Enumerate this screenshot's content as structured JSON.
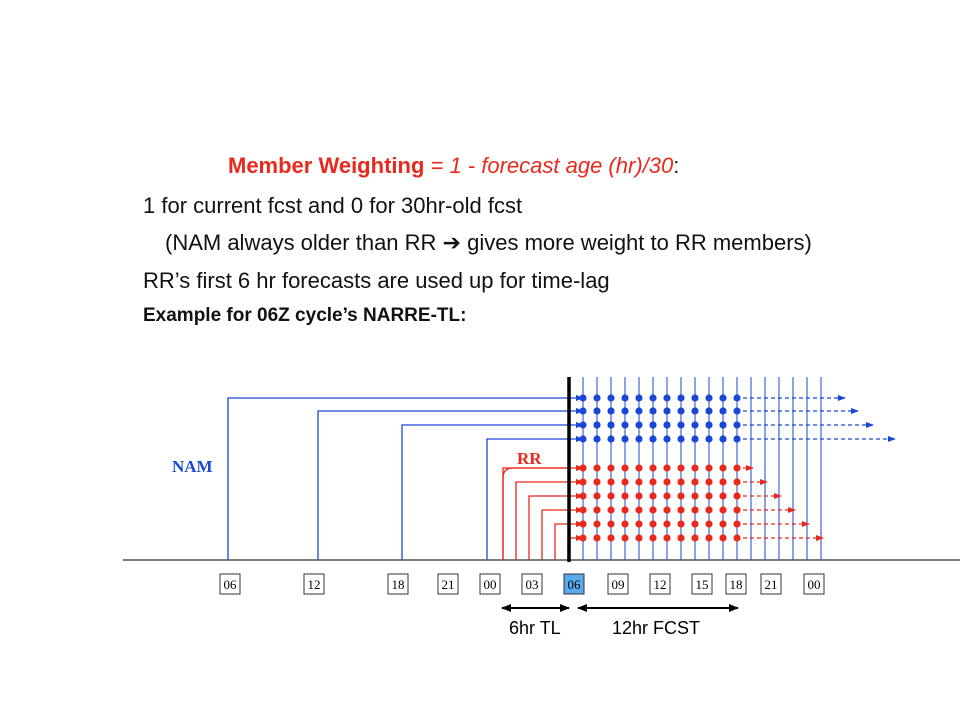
{
  "text": {
    "line1": {
      "member_weighting": "Member  Weighting",
      "formula": " = 1 - forecast age (hr)/30",
      "colon": ":"
    },
    "line2": "1 for current fcst and 0 for 30hr-old fcst",
    "line3": {
      "before": "(NAM always older than RR ",
      "arrow": "➔",
      "after": " gives more weight to RR members)"
    },
    "line4": "RR’s first 6 hr forecasts are used up for time-lag",
    "line5": "Example for 06Z cycle’s  NARRE-TL:"
  },
  "diagram": {
    "time_labels": [
      "06",
      "12",
      "18",
      "21",
      "00",
      "03",
      "06",
      "09",
      "12",
      "15",
      "18",
      "21",
      "00"
    ],
    "highlighted_label": "06",
    "series": {
      "nam": {
        "label": "NAM",
        "color": "#1a47d6",
        "member_count": 4
      },
      "rr": {
        "label": "RR",
        "color": "#e8291c",
        "member_count": 6
      }
    },
    "spans": {
      "time_lag": "6hr TL",
      "forecast": "12hr FCST"
    },
    "colors": {
      "highlight": "#5aa9ee",
      "axis": "#000000"
    }
  }
}
